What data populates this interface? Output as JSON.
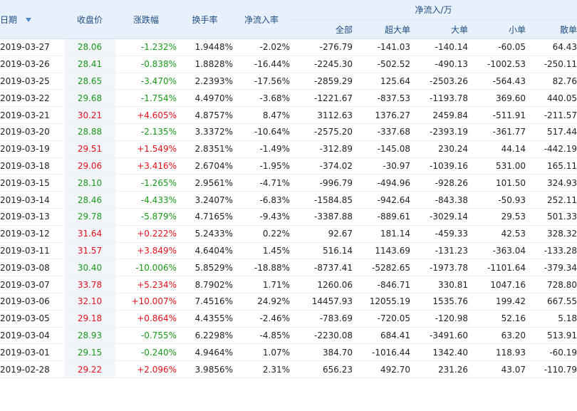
{
  "header": {
    "date": "日期",
    "close": "收盘价",
    "change": "涨跌幅",
    "turnover": "换手率",
    "net_rate": "净流入率",
    "net_group": "净流入/万",
    "all": "全部",
    "super_large": "超大单",
    "large": "大单",
    "small": "小单",
    "retail": "散单"
  },
  "rows": [
    {
      "date": "2019-03-27",
      "close": "28.06",
      "change": "-1.232%",
      "turnover": "1.9448%",
      "net_rate": "-2.02%",
      "all": "-276.79",
      "super_large": "-141.03",
      "large": "-140.14",
      "small": "-60.05",
      "retail": "64.43",
      "dir": "down"
    },
    {
      "date": "2019-03-26",
      "close": "28.41",
      "change": "-0.838%",
      "turnover": "1.8828%",
      "net_rate": "-16.44%",
      "all": "-2245.30",
      "super_large": "-502.52",
      "large": "-490.13",
      "small": "-1002.53",
      "retail": "-250.11",
      "dir": "down"
    },
    {
      "date": "2019-03-25",
      "close": "28.65",
      "change": "-3.470%",
      "turnover": "2.2393%",
      "net_rate": "-17.56%",
      "all": "-2859.29",
      "super_large": "125.64",
      "large": "-2503.26",
      "small": "-564.43",
      "retail": "82.76",
      "dir": "down"
    },
    {
      "date": "2019-03-22",
      "close": "29.68",
      "change": "-1.754%",
      "turnover": "4.4970%",
      "net_rate": "-3.68%",
      "all": "-1221.67",
      "super_large": "-837.53",
      "large": "-1193.78",
      "small": "369.60",
      "retail": "440.05",
      "dir": "down"
    },
    {
      "date": "2019-03-21",
      "close": "30.21",
      "change": "+4.605%",
      "turnover": "4.8757%",
      "net_rate": "8.47%",
      "all": "3112.63",
      "super_large": "1376.27",
      "large": "2459.84",
      "small": "-511.91",
      "retail": "-211.57",
      "dir": "up"
    },
    {
      "date": "2019-03-20",
      "close": "28.88",
      "change": "-2.135%",
      "turnover": "3.3372%",
      "net_rate": "-10.64%",
      "all": "-2575.20",
      "super_large": "-337.68",
      "large": "-2393.19",
      "small": "-361.77",
      "retail": "517.44",
      "dir": "down"
    },
    {
      "date": "2019-03-19",
      "close": "29.51",
      "change": "+1.549%",
      "turnover": "2.8351%",
      "net_rate": "-1.49%",
      "all": "-312.89",
      "super_large": "-145.08",
      "large": "230.24",
      "small": "44.14",
      "retail": "-442.19",
      "dir": "up"
    },
    {
      "date": "2019-03-18",
      "close": "29.06",
      "change": "+3.416%",
      "turnover": "2.6704%",
      "net_rate": "-1.95%",
      "all": "-374.02",
      "super_large": "-30.97",
      "large": "-1039.16",
      "small": "531.00",
      "retail": "165.11",
      "dir": "up"
    },
    {
      "date": "2019-03-15",
      "close": "28.10",
      "change": "-1.265%",
      "turnover": "2.9561%",
      "net_rate": "-4.71%",
      "all": "-996.79",
      "super_large": "-494.96",
      "large": "-928.26",
      "small": "101.50",
      "retail": "324.93",
      "dir": "down"
    },
    {
      "date": "2019-03-14",
      "close": "28.46",
      "change": "-4.433%",
      "turnover": "3.2407%",
      "net_rate": "-6.83%",
      "all": "-1584.85",
      "super_large": "-942.64",
      "large": "-843.38",
      "small": "-50.93",
      "retail": "252.11",
      "dir": "down"
    },
    {
      "date": "2019-03-13",
      "close": "29.78",
      "change": "-5.879%",
      "turnover": "4.7165%",
      "net_rate": "-9.43%",
      "all": "-3387.88",
      "super_large": "-889.61",
      "large": "-3029.14",
      "small": "29.53",
      "retail": "501.33",
      "dir": "down"
    },
    {
      "date": "2019-03-12",
      "close": "31.64",
      "change": "+0.222%",
      "turnover": "5.2433%",
      "net_rate": "0.22%",
      "all": "92.67",
      "super_large": "181.14",
      "large": "-459.33",
      "small": "42.53",
      "retail": "328.32",
      "dir": "up"
    },
    {
      "date": "2019-03-11",
      "close": "31.57",
      "change": "+3.849%",
      "turnover": "4.6404%",
      "net_rate": "1.45%",
      "all": "516.14",
      "super_large": "1143.69",
      "large": "-131.23",
      "small": "-363.04",
      "retail": "-133.28",
      "dir": "up"
    },
    {
      "date": "2019-03-08",
      "close": "30.40",
      "change": "-10.006%",
      "turnover": "5.8529%",
      "net_rate": "-18.88%",
      "all": "-8737.41",
      "super_large": "-5282.65",
      "large": "-1973.78",
      "small": "-1101.64",
      "retail": "-379.34",
      "dir": "down"
    },
    {
      "date": "2019-03-07",
      "close": "33.78",
      "change": "+5.234%",
      "turnover": "8.7902%",
      "net_rate": "1.71%",
      "all": "1260.06",
      "super_large": "-846.71",
      "large": "330.81",
      "small": "1047.16",
      "retail": "728.80",
      "dir": "up"
    },
    {
      "date": "2019-03-06",
      "close": "32.10",
      "change": "+10.007%",
      "turnover": "7.4516%",
      "net_rate": "24.92%",
      "all": "14457.93",
      "super_large": "12055.19",
      "large": "1535.76",
      "small": "199.42",
      "retail": "667.55",
      "dir": "up"
    },
    {
      "date": "2019-03-05",
      "close": "29.18",
      "change": "+0.864%",
      "turnover": "4.4355%",
      "net_rate": "-2.46%",
      "all": "-783.69",
      "super_large": "-720.05",
      "large": "-120.98",
      "small": "52.16",
      "retail": "5.18",
      "dir": "up"
    },
    {
      "date": "2019-03-04",
      "close": "28.93",
      "change": "-0.755%",
      "turnover": "6.2298%",
      "net_rate": "-4.85%",
      "all": "-2230.08",
      "super_large": "684.41",
      "large": "-3491.60",
      "small": "63.20",
      "retail": "513.91",
      "dir": "down"
    },
    {
      "date": "2019-03-01",
      "close": "29.15",
      "change": "-0.240%",
      "turnover": "4.9464%",
      "net_rate": "1.07%",
      "all": "384.70",
      "super_large": "-1016.44",
      "large": "1342.40",
      "small": "118.93",
      "retail": "-60.19",
      "dir": "down"
    },
    {
      "date": "2019-02-28",
      "close": "29.22",
      "change": "+2.096%",
      "turnover": "3.9856%",
      "net_rate": "2.31%",
      "all": "656.23",
      "super_large": "492.70",
      "large": "231.26",
      "small": "43.07",
      "retail": "-110.79",
      "dir": "up"
    }
  ]
}
